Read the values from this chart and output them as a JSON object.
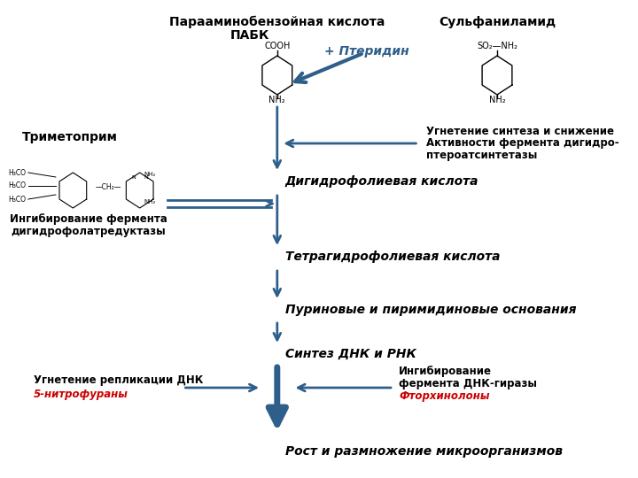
{
  "bg_color": "#ffffff",
  "arrow_color": "#2e5f8a",
  "red_color": "#cc0000",
  "text_color": "#000000",
  "title1": "Парааминобензойная кислота",
  "title2": "ПАБК",
  "pteridin": "+ Птеридин",
  "sulfanilamid": "Сульфаниламид",
  "inhibit_text1": "Угнетение синтеза и снижение",
  "inhibit_text2": "Активности фермента дигидро-",
  "inhibit_text3": "птероатсинтетазы",
  "trimetoprim": "Триметоприм",
  "inhibit_dh1": "Ингибирование фермента",
  "inhibit_dh2": "дигидрофолатредуктазы",
  "dihydrofolic": "Дигидрофолиевая кислота",
  "tetrahydrofolic": "Тетрагидрофолиевая кислота",
  "purines": "Пуриновые и пиримидиновые основания",
  "dna_rna": "Синтез ДНК и РНК",
  "replication": "Угнетение репликации ДНК",
  "nitrofurany": "5-нитрофураны",
  "inhibit_gyrase1": "Ингибирование",
  "inhibit_gyrase2": "фермента ДНК-гиразы",
  "ftorhinolony": "Фторхинолоны",
  "growth": "Рост и размножение микроорганизмов",
  "fontsize_main": 10,
  "fontsize_italic": 10,
  "fontsize_small": 8.5,
  "fontsize_tiny": 7.0
}
